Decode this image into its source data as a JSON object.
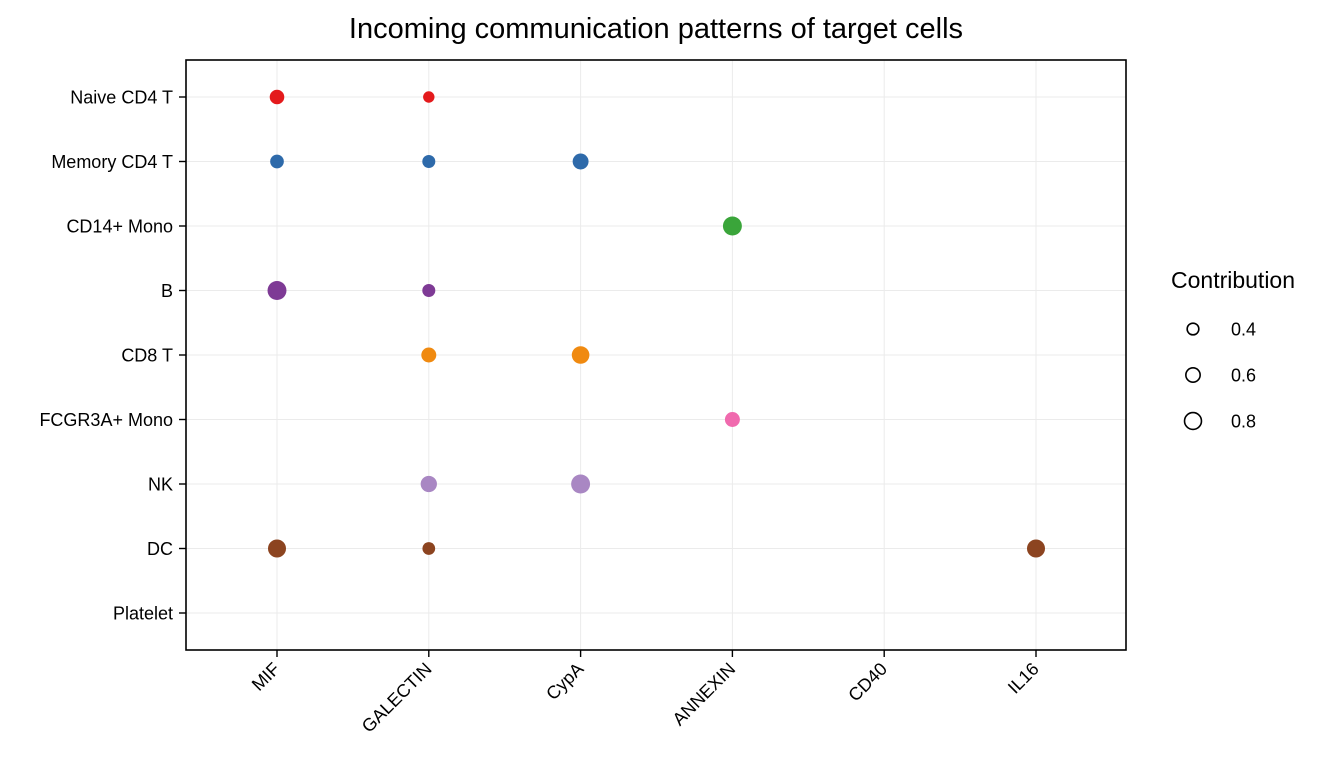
{
  "chart_data": {
    "type": "scatter",
    "title": "Incoming communication patterns of target cells",
    "xlabel": "",
    "ylabel": "",
    "x_categories": [
      "MIF",
      "GALECTIN",
      "CypA",
      "ANNEXIN",
      "CD40",
      "IL16"
    ],
    "y_categories": [
      "Naive CD4 T",
      "Memory CD4 T",
      "CD14+ Mono",
      "B",
      "CD8 T",
      "FCGR3A+ Mono",
      "NK",
      "DC",
      "Platelet"
    ],
    "grid": true,
    "legend": {
      "title": "Contribution",
      "placement": "right",
      "entries": [
        {
          "label": "0.4",
          "value": 0.4
        },
        {
          "label": "0.6",
          "value": 0.6
        },
        {
          "label": "0.8",
          "value": 0.8
        }
      ]
    },
    "colors": {
      "Naive CD4 T": "#e41a1c",
      "Memory CD4 T": "#2e6aaa",
      "CD14+ Mono": "#3aa53a",
      "B": "#7e3a95",
      "CD8 T": "#f08a10",
      "FCGR3A+ Mono": "#f06aae",
      "NK": "#a987c3",
      "DC": "#8c4420",
      "Platelet": "#999999"
    },
    "points": [
      {
        "x": "MIF",
        "y": "Naive CD4 T",
        "contribution": 0.62
      },
      {
        "x": "GALECTIN",
        "y": "Naive CD4 T",
        "contribution": 0.38
      },
      {
        "x": "MIF",
        "y": "Memory CD4 T",
        "contribution": 0.55
      },
      {
        "x": "GALECTIN",
        "y": "Memory CD4 T",
        "contribution": 0.5
      },
      {
        "x": "CypA",
        "y": "Memory CD4 T",
        "contribution": 0.72
      },
      {
        "x": "ANNEXIN",
        "y": "CD14+ Mono",
        "contribution": 0.95
      },
      {
        "x": "MIF",
        "y": "B",
        "contribution": 0.95
      },
      {
        "x": "GALECTIN",
        "y": "B",
        "contribution": 0.5
      },
      {
        "x": "GALECTIN",
        "y": "CD8 T",
        "contribution": 0.65
      },
      {
        "x": "CypA",
        "y": "CD8 T",
        "contribution": 0.85
      },
      {
        "x": "ANNEXIN",
        "y": "FCGR3A+ Mono",
        "contribution": 0.65
      },
      {
        "x": "GALECTIN",
        "y": "NK",
        "contribution": 0.75
      },
      {
        "x": "CypA",
        "y": "NK",
        "contribution": 0.95
      },
      {
        "x": "MIF",
        "y": "DC",
        "contribution": 0.88
      },
      {
        "x": "GALECTIN",
        "y": "DC",
        "contribution": 0.48
      },
      {
        "x": "IL16",
        "y": "DC",
        "contribution": 0.88
      }
    ]
  }
}
